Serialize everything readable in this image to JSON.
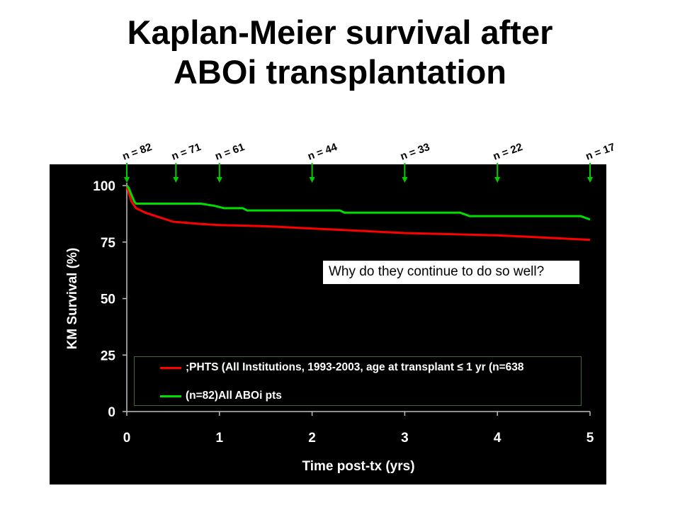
{
  "title_line1": "Kaplan-Meier survival after",
  "title_line2": "ABOi transplantation",
  "chart_data": {
    "type": "line",
    "xlabel": "Time post-tx (yrs)",
    "ylabel": "KM Survival (%)",
    "xlim": [
      0,
      5
    ],
    "ylim": [
      0,
      100
    ],
    "x_ticks": [
      "0",
      "1",
      "2",
      "3",
      "4",
      "5"
    ],
    "y_ticks": [
      "0",
      "25",
      "50",
      "75",
      "100"
    ],
    "legend_placement": "bottom",
    "series": [
      {
        "name": ";PHTS (All Institutions, 1993-2003, age at transplant ≤ 1 yr (n=638",
        "color": "#ff0000",
        "x": [
          0,
          0.02,
          0.05,
          0.1,
          0.2,
          0.35,
          0.5,
          0.8,
          1.0,
          1.5,
          2.0,
          2.5,
          3.0,
          3.5,
          4.0,
          4.5,
          5.0
        ],
        "y": [
          100,
          97,
          93,
          90,
          88,
          86,
          84,
          83,
          82.5,
          82,
          81,
          80,
          79,
          78.5,
          78,
          77,
          76
        ]
      },
      {
        "name": "(n=82)All ABOi pts",
        "color": "#00dd00",
        "x": [
          0,
          0.02,
          0.05,
          0.08,
          0.1,
          0.8,
          0.95,
          1.05,
          1.1,
          1.25,
          1.3,
          2.3,
          2.35,
          3.6,
          3.7,
          4.9,
          5.0
        ],
        "y": [
          100,
          99,
          96,
          93,
          92,
          92,
          91,
          90,
          90,
          90,
          89,
          89,
          88,
          88,
          86.5,
          86.5,
          85
        ]
      }
    ],
    "annotations": [
      {
        "text": "n = 82",
        "x": 0
      },
      {
        "text": "n = 71",
        "x": 0.53
      },
      {
        "text": "n = 61",
        "x": 1.0
      },
      {
        "text": "n = 44",
        "x": 2.0
      },
      {
        "text": "n = 33",
        "x": 3.0
      },
      {
        "text": "n = 22",
        "x": 4.0
      },
      {
        "text": "n = 17",
        "x": 5.0
      }
    ],
    "callout": "Why do they continue to do so well?"
  }
}
